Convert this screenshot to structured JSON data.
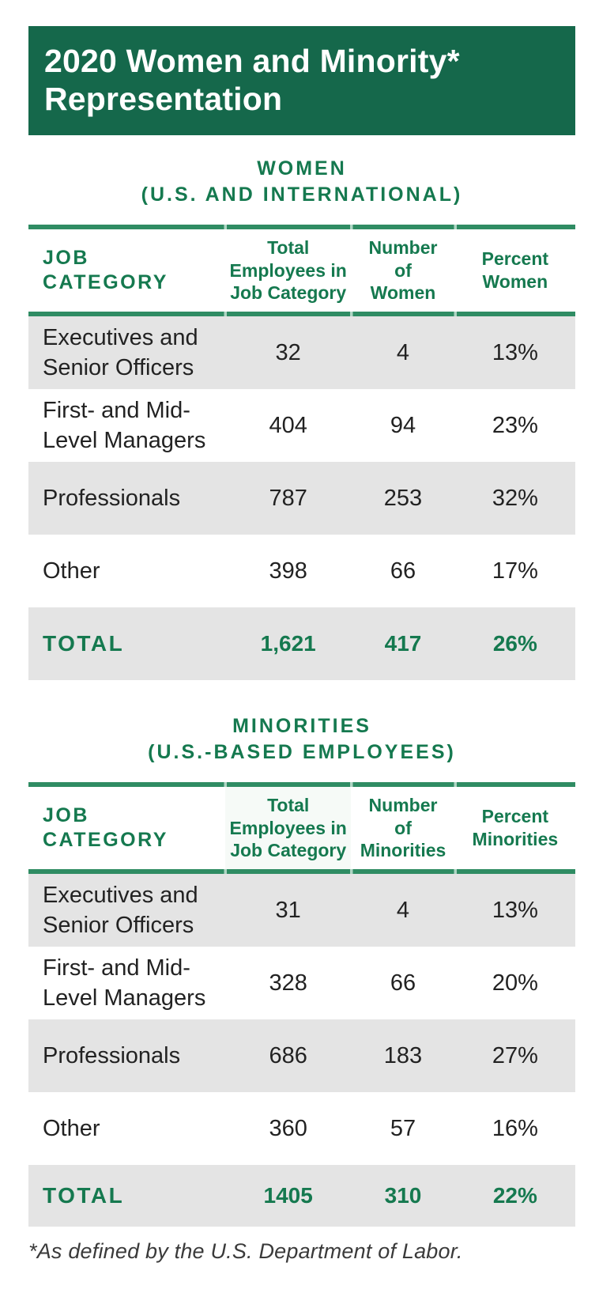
{
  "banner": {
    "line1": "2020 Women and Minority*",
    "line2": "Representation"
  },
  "colors": {
    "banner_green": "#15684B",
    "heading_green": "#15794F",
    "rule_green": "#2F8C63",
    "row_gray": "#E4E4E4",
    "body_text": "#222222"
  },
  "footnote": "*As defined by the U.S. Department of Labor.",
  "chart_data": [
    {
      "type": "table",
      "title_lines": [
        "WOMEN",
        "(U.S. AND INTERNATIONAL)"
      ],
      "columns": [
        "JOB\nCATEGORY",
        "Total\nEmployees in\nJob Category",
        "Number\nof\nWomen",
        "Percent\nWomen"
      ],
      "rows": [
        {
          "category": "Executives and\nSenior Officers",
          "total_employees": "32",
          "number": "4",
          "percent": "13%"
        },
        {
          "category": "First- and Mid-\nLevel Managers",
          "total_employees": "404",
          "number": "94",
          "percent": "23%"
        },
        {
          "category": "Professionals",
          "total_employees": "787",
          "number": "253",
          "percent": "32%"
        },
        {
          "category": "Other",
          "total_employees": "398",
          "number": "66",
          "percent": "17%"
        }
      ],
      "total_row": {
        "category": "TOTAL",
        "total_employees": "1,621",
        "number": "417",
        "percent": "26%"
      }
    },
    {
      "type": "table",
      "title_lines": [
        "MINORITIES",
        "(U.S.-BASED EMPLOYEES)"
      ],
      "columns": [
        "JOB\nCATEGORY",
        "Total\nEmployees in\nJob Category",
        "Number\nof\nMinorities",
        "Percent\nMinorities"
      ],
      "rows": [
        {
          "category": "Executives and\nSenior Officers",
          "total_employees": "31",
          "number": "4",
          "percent": "13%"
        },
        {
          "category": "First- and Mid-\nLevel Managers",
          "total_employees": "328",
          "number": "66",
          "percent": "20%"
        },
        {
          "category": "Professionals",
          "total_employees": "686",
          "number": "183",
          "percent": "27%"
        },
        {
          "category": "Other",
          "total_employees": "360",
          "number": "57",
          "percent": "16%"
        }
      ],
      "total_row": {
        "category": "TOTAL",
        "total_employees": "1405",
        "number": "310",
        "percent": "22%"
      }
    }
  ]
}
